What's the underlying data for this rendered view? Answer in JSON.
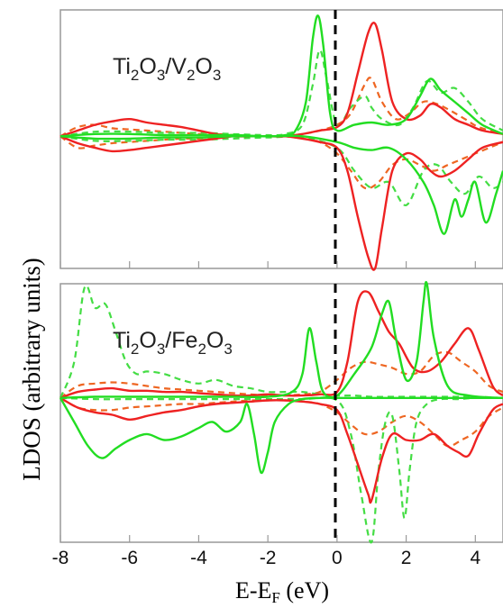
{
  "chart_data": [
    {
      "type": "line",
      "label_parts": {
        "a": "Ti",
        "a_sub": "2",
        "b": "O",
        "b_sub": "3",
        "sep": "/",
        "c": "V",
        "c_sub": "2",
        "d": "O",
        "d_sub": "3"
      },
      "xlim": [
        -8,
        4.8
      ],
      "ylim": [
        -1.15,
        1.1
      ],
      "fermi_level": 0,
      "colors": {
        "red": "#ee2222",
        "green": "#22dd22",
        "orange": "#ee6622",
        "lightgreen": "#44dd44"
      },
      "series": [
        {
          "color": "red",
          "style": "solid",
          "sign": 1,
          "x": [
            -8,
            -7.5,
            -7,
            -6.5,
            -6,
            -5.5,
            -5,
            -4.5,
            -4,
            -3.5,
            -3,
            -2.5,
            -2,
            -1.5,
            -1,
            -0.5,
            0,
            0.3,
            0.6,
            0.9,
            1.1,
            1.3,
            1.6,
            2,
            2.4,
            2.7,
            3.0,
            3.4,
            3.8,
            4.2,
            4.8
          ],
          "y": [
            0,
            0.05,
            0.1,
            0.13,
            0.15,
            0.12,
            0.1,
            0.08,
            0.05,
            0.02,
            0,
            0,
            0,
            0,
            0.02,
            0.05,
            0.08,
            0.2,
            0.55,
            0.9,
            0.98,
            0.75,
            0.3,
            0.15,
            0.18,
            0.28,
            0.25,
            0.15,
            0.1,
            0.05,
            0.02
          ]
        },
        {
          "color": "red",
          "style": "solid",
          "sign": -1,
          "x": [
            -8,
            -7.5,
            -7,
            -6.5,
            -6,
            -5.5,
            -5,
            -4.5,
            -4,
            -3.5,
            -3,
            -2.5,
            -2,
            -1.5,
            -1,
            -0.5,
            0,
            0.3,
            0.6,
            0.9,
            1.1,
            1.3,
            1.6,
            2,
            2.4,
            2.7,
            3.0,
            3.4,
            3.8,
            4.2,
            4.8
          ],
          "y": [
            0,
            0.06,
            0.1,
            0.13,
            0.12,
            0.1,
            0.08,
            0.06,
            0.04,
            0.02,
            0,
            0,
            0,
            0,
            0.02,
            0.05,
            0.1,
            0.3,
            0.7,
            1.05,
            1.15,
            0.8,
            0.3,
            0.15,
            0.2,
            0.3,
            0.35,
            0.3,
            0.2,
            0.1,
            0.05
          ]
        },
        {
          "color": "green",
          "style": "solid",
          "sign": 1,
          "x": [
            -8,
            -7,
            -6,
            -5,
            -4,
            -3,
            -2,
            -1.5,
            -1.2,
            -0.9,
            -0.7,
            -0.55,
            -0.4,
            -0.2,
            0,
            0.5,
            1,
            1.5,
            2,
            2.4,
            2.7,
            3,
            3.4,
            3.8,
            4.2,
            4.8
          ],
          "y": [
            0,
            0.02,
            0.02,
            0.01,
            0.01,
            0.01,
            0,
            0.01,
            0.05,
            0.3,
            0.85,
            1.05,
            0.8,
            0.2,
            0.05,
            0.1,
            0.12,
            0.1,
            0.15,
            0.35,
            0.5,
            0.4,
            0.3,
            0.2,
            0.1,
            0.02
          ]
        },
        {
          "color": "green",
          "style": "solid",
          "sign": -1,
          "x": [
            -8,
            -7,
            -6,
            -5,
            -4,
            -3,
            -2,
            -1,
            0,
            0.5,
            1,
            1.5,
            2,
            2.5,
            2.8,
            3.1,
            3.4,
            3.6,
            3.8,
            4.0,
            4.3,
            4.6,
            4.8
          ],
          "y": [
            0,
            0.02,
            0.02,
            0.01,
            0.01,
            0,
            0,
            0,
            0.05,
            0.1,
            0.12,
            0.1,
            0.2,
            0.4,
            0.6,
            0.85,
            0.55,
            0.7,
            0.55,
            0.4,
            0.75,
            0.5,
            0.3
          ]
        },
        {
          "color": "orange",
          "style": "dashed",
          "sign": 1,
          "x": [
            -8,
            -7.5,
            -7,
            -6.5,
            -6,
            -5.5,
            -5,
            -4.5,
            -4,
            -3.5,
            -3,
            -2.5,
            -2,
            -1.5,
            -1,
            -0.5,
            0,
            0.4,
            0.8,
            1.0,
            1.3,
            1.7,
            2.1,
            2.5,
            2.9,
            3.3,
            3.7,
            4.1,
            4.8
          ],
          "y": [
            0,
            0.08,
            0.1,
            0.07,
            0.06,
            0.05,
            0.04,
            0.03,
            0.02,
            0.02,
            0.01,
            0,
            0,
            0,
            0.02,
            0.05,
            0.1,
            0.2,
            0.45,
            0.5,
            0.3,
            0.15,
            0.2,
            0.3,
            0.28,
            0.22,
            0.15,
            0.08,
            0.02
          ]
        },
        {
          "color": "orange",
          "style": "dashed",
          "sign": -1,
          "x": [
            -8,
            -7.5,
            -7,
            -6.5,
            -6,
            -5.5,
            -5,
            -4.5,
            -4,
            -3.5,
            -3,
            -2.5,
            -2,
            -1.5,
            -1,
            -0.5,
            0,
            0.4,
            0.8,
            1.2,
            1.6,
            2.0,
            2.4,
            2.8,
            3.2,
            3.6,
            4.0,
            4.4,
            4.8
          ],
          "y": [
            0,
            0.1,
            0.08,
            0.06,
            0.05,
            0.04,
            0.03,
            0.02,
            0.02,
            0.01,
            0,
            0,
            0,
            0,
            0.02,
            0.05,
            0.15,
            0.3,
            0.45,
            0.4,
            0.25,
            0.2,
            0.25,
            0.3,
            0.25,
            0.2,
            0.15,
            0.1,
            0.05
          ]
        },
        {
          "color": "lightgreen",
          "style": "dashed",
          "sign": 1,
          "x": [
            -8,
            -7,
            -6,
            -5,
            -4,
            -3,
            -2,
            -1.5,
            -1,
            -0.7,
            -0.5,
            -0.3,
            0,
            0.4,
            0.8,
            1.0,
            1.3,
            1.8,
            2.2,
            2.6,
            3.0,
            3.4,
            3.8,
            4.2,
            4.8
          ],
          "y": [
            0,
            0.04,
            0.04,
            0.03,
            0.03,
            0.02,
            0.01,
            0.02,
            0.1,
            0.45,
            0.75,
            0.5,
            0.1,
            0.25,
            0.35,
            0.25,
            0.15,
            0.1,
            0.25,
            0.48,
            0.38,
            0.42,
            0.3,
            0.15,
            0.05
          ]
        },
        {
          "color": "lightgreen",
          "style": "dashed",
          "sign": -1,
          "x": [
            -8,
            -7,
            -6,
            -5,
            -4,
            -3,
            -2,
            -1,
            0,
            0.5,
            1.0,
            1.5,
            2.0,
            2.5,
            2.9,
            3.3,
            3.7,
            4.1,
            4.5,
            4.8
          ],
          "y": [
            0,
            0.04,
            0.04,
            0.03,
            0.03,
            0.02,
            0.01,
            0.01,
            0.1,
            0.3,
            0.45,
            0.4,
            0.6,
            0.3,
            0.25,
            0.4,
            0.5,
            0.35,
            0.45,
            0.4
          ]
        }
      ]
    },
    {
      "type": "line",
      "label_parts": {
        "a": "Ti",
        "a_sub": "2",
        "b": "O",
        "b_sub": "3",
        "sep": "/",
        "c": "Fe",
        "c_sub": "2",
        "d": "O",
        "d_sub": "3"
      },
      "xlim": [
        -8,
        4.8
      ],
      "ylim": [
        -1.2,
        0.95
      ],
      "fermi_level": 0,
      "colors": {
        "red": "#ee2222",
        "green": "#22dd22",
        "orange": "#ee6622",
        "lightgreen": "#44dd44"
      },
      "series": [
        {
          "color": "red",
          "style": "solid",
          "sign": 1,
          "x": [
            -8,
            -7.5,
            -7,
            -6.5,
            -6,
            -5.5,
            -5,
            -4.5,
            -4,
            -3.5,
            -3,
            -2.5,
            -2,
            -1.5,
            -1,
            -0.5,
            0,
            0.3,
            0.6,
            0.9,
            1.2,
            1.5,
            1.8,
            2.2,
            2.6,
            3.0,
            3.4,
            3.8,
            4.1,
            4.5,
            4.8
          ],
          "y": [
            0,
            0.05,
            0.07,
            0.08,
            0.06,
            0.06,
            0.05,
            0.05,
            0.04,
            0.03,
            0.02,
            0.02,
            0.03,
            0.02,
            0.02,
            0.03,
            0.05,
            0.3,
            0.8,
            0.88,
            0.72,
            0.55,
            0.45,
            0.25,
            0.22,
            0.3,
            0.45,
            0.58,
            0.4,
            0.1,
            0.02
          ]
        },
        {
          "color": "red",
          "style": "solid",
          "sign": -1,
          "x": [
            -8,
            -7.5,
            -7,
            -6.5,
            -6,
            -5.5,
            -5,
            -4.5,
            -4,
            -3.5,
            -3,
            -2.5,
            -2,
            -1.5,
            -1,
            -0.5,
            0,
            0.3,
            0.6,
            0.9,
            1.0,
            1.3,
            1.6,
            2.0,
            2.4,
            2.8,
            3.2,
            3.5,
            3.8,
            4.1,
            4.5,
            4.8
          ],
          "y": [
            0,
            0.08,
            0.12,
            0.14,
            0.18,
            0.15,
            0.12,
            0.1,
            0.07,
            0.05,
            0.04,
            0.03,
            0.02,
            0.02,
            0.03,
            0.05,
            0.1,
            0.3,
            0.55,
            0.8,
            0.85,
            0.5,
            0.3,
            0.35,
            0.35,
            0.3,
            0.4,
            0.45,
            0.48,
            0.3,
            0.1,
            0.05
          ]
        },
        {
          "color": "green",
          "style": "solid",
          "sign": 1,
          "x": [
            -8,
            -7,
            -6,
            -5,
            -4,
            -3,
            -2,
            -1.3,
            -1.0,
            -0.8,
            -0.6,
            -0.4,
            0,
            0.5,
            1.0,
            1.3,
            1.5,
            1.7,
            2.0,
            2.3,
            2.5,
            2.6,
            2.8,
            3.2,
            3.8,
            4.8
          ],
          "y": [
            0,
            0.01,
            0.01,
            0.01,
            0.01,
            0.01,
            0.01,
            0.05,
            0.2,
            0.58,
            0.3,
            0.05,
            0.02,
            0.2,
            0.42,
            0.7,
            0.8,
            0.5,
            0.15,
            0.3,
            0.8,
            0.95,
            0.5,
            0.1,
            0.02,
            0
          ]
        },
        {
          "color": "green",
          "style": "solid",
          "sign": -1,
          "x": [
            -8,
            -7.6,
            -7.2,
            -6.8,
            -6.4,
            -6,
            -5.5,
            -5,
            -4.5,
            -4,
            -3.6,
            -3.2,
            -2.8,
            -2.6,
            -2.4,
            -2.2,
            -2.0,
            -1.8,
            -1.4,
            -1.0,
            -0.5,
            0,
            0.5,
            1,
            2,
            3,
            4,
            4.8
          ],
          "y": [
            0,
            0.2,
            0.4,
            0.5,
            0.42,
            0.35,
            0.3,
            0.35,
            0.32,
            0.25,
            0.2,
            0.28,
            0.2,
            0.05,
            0.3,
            0.62,
            0.45,
            0.2,
            0.05,
            0.01,
            0,
            0,
            0,
            0,
            0,
            0,
            0,
            0
          ]
        },
        {
          "color": "orange",
          "style": "dashed",
          "sign": 1,
          "x": [
            -8,
            -7.5,
            -7,
            -6.5,
            -6,
            -5.5,
            -5,
            -4.5,
            -4,
            -3.5,
            -3,
            -2.5,
            -2,
            -1.5,
            -1,
            -0.5,
            0,
            0.4,
            0.8,
            1.2,
            1.6,
            2.0,
            2.4,
            2.8,
            3.2,
            3.6,
            4.0,
            4.4,
            4.8
          ],
          "y": [
            0,
            0.1,
            0.12,
            0.13,
            0.12,
            0.1,
            0.08,
            0.07,
            0.06,
            0.05,
            0.04,
            0.03,
            0.02,
            0.02,
            0.03,
            0.05,
            0.15,
            0.25,
            0.3,
            0.28,
            0.25,
            0.2,
            0.22,
            0.35,
            0.38,
            0.3,
            0.22,
            0.1,
            0.05
          ]
        },
        {
          "color": "orange",
          "style": "dashed",
          "sign": -1,
          "x": [
            -8,
            -7.5,
            -7,
            -6.5,
            -6,
            -5.5,
            -5,
            -4.5,
            -4,
            -3.5,
            -3,
            -2.5,
            -2,
            -1.5,
            -1,
            -0.5,
            0,
            0.4,
            0.8,
            1.2,
            1.6,
            2.0,
            2.4,
            2.8,
            3.2,
            3.6,
            4.0,
            4.4,
            4.8
          ],
          "y": [
            0,
            0.08,
            0.1,
            0.1,
            0.08,
            0.07,
            0.06,
            0.05,
            0.05,
            0.04,
            0.03,
            0.02,
            0.02,
            0.02,
            0.03,
            0.05,
            0.12,
            0.22,
            0.3,
            0.28,
            0.2,
            0.15,
            0.2,
            0.3,
            0.4,
            0.35,
            0.28,
            0.15,
            0.08
          ]
        },
        {
          "color": "lightgreen",
          "style": "dashed",
          "sign": 1,
          "x": [
            -8,
            -7.6,
            -7.3,
            -7.0,
            -6.7,
            -6.4,
            -6.1,
            -5.8,
            -5.5,
            -5.0,
            -4.5,
            -4.0,
            -3.5,
            -3.0,
            -2.5,
            -2.0,
            -1.5,
            -1.0,
            -0.5,
            0,
            0.5,
            1.0,
            1.5,
            2.0,
            2.5,
            3.0,
            3.5,
            4.0,
            4.8
          ],
          "y": [
            0,
            0.3,
            0.92,
            0.75,
            0.78,
            0.55,
            0.3,
            0.2,
            0.22,
            0.2,
            0.15,
            0.12,
            0.15,
            0.1,
            0.08,
            0.05,
            0.05,
            0.05,
            0.03,
            0.02,
            0.02,
            0.01,
            0.01,
            0.01,
            0.01,
            0.01,
            0.01,
            0.01,
            0
          ]
        },
        {
          "color": "lightgreen",
          "style": "dashed",
          "sign": -1,
          "x": [
            -8,
            -7,
            -6,
            -5,
            -4,
            -3,
            -2,
            -1,
            0,
            0.4,
            0.7,
            1.0,
            1.2,
            1.4,
            1.6,
            1.8,
            1.95,
            2.1,
            2.3,
            2.6,
            3.0,
            3.5,
            4.0,
            4.8
          ],
          "y": [
            0,
            0.01,
            0.01,
            0.01,
            0.01,
            0.01,
            0.01,
            0.01,
            0.02,
            0.3,
            0.8,
            1.2,
            0.6,
            0.2,
            0.15,
            0.6,
            1.0,
            0.6,
            0.2,
            0.05,
            0.01,
            0.01,
            0,
            0
          ]
        }
      ]
    }
  ],
  "axes": {
    "xlabel_parts": {
      "a": "E-E",
      "sub": "F",
      "b": " (eV)"
    },
    "ylabel": "LDOS (arbitrary units)",
    "xticks": [
      -8,
      -6,
      -4,
      -2,
      0,
      2,
      4
    ],
    "xtick_labels": [
      "-8",
      "-6",
      "-4",
      "-2",
      "0",
      "2",
      "4"
    ]
  }
}
